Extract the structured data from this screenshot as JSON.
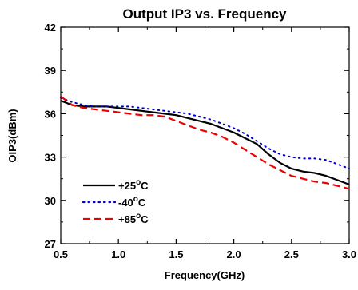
{
  "chart_data": {
    "type": "line",
    "title": "Output IP3 vs. Frequency",
    "xlabel": "Frequency(GHz)",
    "ylabel": "OIP3(dBm)",
    "xlim": [
      0.5,
      3.0
    ],
    "ylim": [
      27,
      42
    ],
    "xticks": [
      "0.5",
      "1.0",
      "1.5",
      "2.0",
      "2.5",
      "3.0"
    ],
    "yticks": [
      "27",
      "30",
      "33",
      "36",
      "39",
      "42"
    ],
    "grid": false,
    "legend_position": "bottom-left",
    "series": [
      {
        "name": "+25°C",
        "name_main": "+25",
        "name_unit": "C",
        "color": "#000000",
        "style": "solid",
        "x": [
          0.5,
          0.6,
          0.7,
          0.8,
          0.9,
          1.0,
          1.1,
          1.2,
          1.3,
          1.4,
          1.5,
          1.6,
          1.7,
          1.8,
          1.9,
          2.0,
          2.1,
          2.2,
          2.3,
          2.4,
          2.5,
          2.6,
          2.7,
          2.8,
          2.9,
          3.0
        ],
        "y": [
          36.9,
          36.6,
          36.5,
          36.5,
          36.5,
          36.4,
          36.3,
          36.2,
          36.1,
          36.0,
          35.9,
          35.7,
          35.5,
          35.3,
          35.0,
          34.7,
          34.3,
          33.9,
          33.2,
          32.6,
          32.2,
          32.0,
          31.9,
          31.7,
          31.4,
          31.1
        ]
      },
      {
        "name": "-40°C",
        "name_main": "-40",
        "name_unit": "C",
        "color": "#0000cc",
        "style": "dotted",
        "x": [
          0.5,
          0.6,
          0.7,
          0.8,
          0.9,
          1.0,
          1.1,
          1.2,
          1.3,
          1.4,
          1.5,
          1.6,
          1.7,
          1.8,
          1.9,
          2.0,
          2.1,
          2.2,
          2.3,
          2.4,
          2.5,
          2.6,
          2.7,
          2.8,
          2.9,
          3.0
        ],
        "y": [
          37.1,
          36.8,
          36.6,
          36.5,
          36.5,
          36.5,
          36.5,
          36.4,
          36.3,
          36.2,
          36.1,
          36.0,
          35.8,
          35.6,
          35.3,
          35.0,
          34.6,
          34.1,
          33.6,
          33.2,
          33.0,
          32.9,
          32.9,
          32.8,
          32.5,
          32.2
        ]
      },
      {
        "name": "+85°C",
        "name_main": "+85",
        "name_unit": "C",
        "color": "#ee0000",
        "style": "dashed",
        "x": [
          0.5,
          0.6,
          0.7,
          0.8,
          0.9,
          1.0,
          1.1,
          1.2,
          1.3,
          1.4,
          1.5,
          1.6,
          1.7,
          1.8,
          1.9,
          2.0,
          2.1,
          2.2,
          2.3,
          2.4,
          2.5,
          2.6,
          2.7,
          2.8,
          2.9,
          3.0
        ],
        "y": [
          37.2,
          36.6,
          36.4,
          36.3,
          36.2,
          36.1,
          36.0,
          35.9,
          35.9,
          35.8,
          35.5,
          35.2,
          34.9,
          34.7,
          34.4,
          34.0,
          33.5,
          33.0,
          32.5,
          32.1,
          31.7,
          31.5,
          31.3,
          31.2,
          31.0,
          30.8
        ]
      }
    ]
  }
}
